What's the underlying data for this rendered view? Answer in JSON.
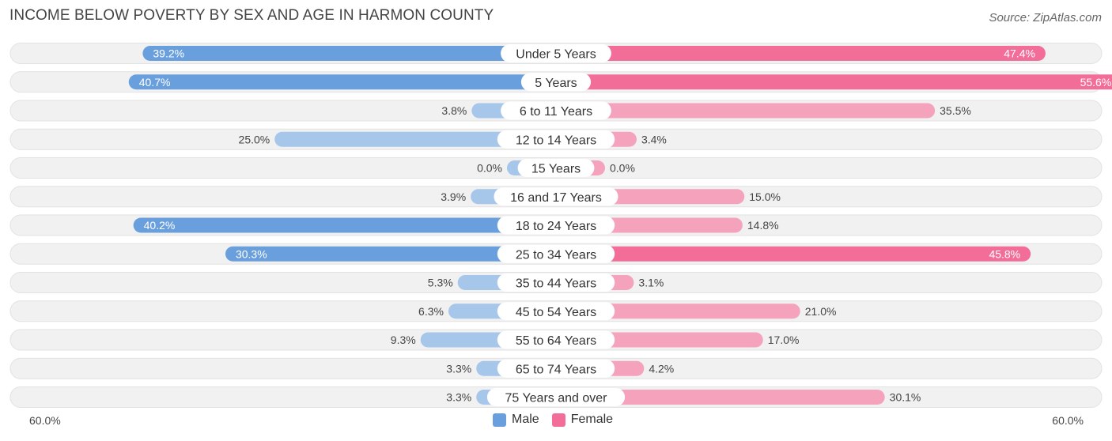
{
  "title": "INCOME BELOW POVERTY BY SEX AND AGE IN HARMON COUNTY",
  "source": "Source: ZipAtlas.com",
  "colors": {
    "male_strong": "#6a9fdd",
    "male_light": "#a6c6ea",
    "female_strong": "#f26d98",
    "female_light": "#f5a3bd",
    "row_bg": "#f1f1f1"
  },
  "axis": {
    "left_label": "60.0%",
    "right_label": "60.0%"
  },
  "legend": {
    "male": "Male",
    "female": "Female"
  },
  "chart_data": {
    "type": "bar",
    "orientation": "horizontal-diverging",
    "title": "INCOME BELOW POVERTY BY SEX AND AGE IN HARMON COUNTY",
    "xlim": [
      -60,
      60
    ],
    "categories": [
      "Under 5 Years",
      "5 Years",
      "6 to 11 Years",
      "12 to 14 Years",
      "15 Years",
      "16 and 17 Years",
      "18 to 24 Years",
      "25 to 34 Years",
      "35 to 44 Years",
      "45 to 54 Years",
      "55 to 64 Years",
      "65 to 74 Years",
      "75 Years and over"
    ],
    "series": [
      {
        "name": "Male",
        "values": [
          39.2,
          40.7,
          3.8,
          25.0,
          0.0,
          3.9,
          40.2,
          30.3,
          5.3,
          6.3,
          9.3,
          3.3,
          3.3
        ],
        "labels": [
          "39.2%",
          "40.7%",
          "3.8%",
          "25.0%",
          "0.0%",
          "3.9%",
          "40.2%",
          "30.3%",
          "5.3%",
          "6.3%",
          "9.3%",
          "3.3%",
          "3.3%"
        ]
      },
      {
        "name": "Female",
        "values": [
          47.4,
          55.6,
          35.5,
          3.4,
          0.0,
          15.0,
          14.8,
          45.8,
          3.1,
          21.0,
          17.0,
          4.2,
          30.1
        ],
        "labels": [
          "47.4%",
          "55.6%",
          "35.5%",
          "3.4%",
          "0.0%",
          "15.0%",
          "14.8%",
          "45.8%",
          "3.1%",
          "21.0%",
          "17.0%",
          "4.2%",
          "30.1%"
        ]
      }
    ]
  }
}
